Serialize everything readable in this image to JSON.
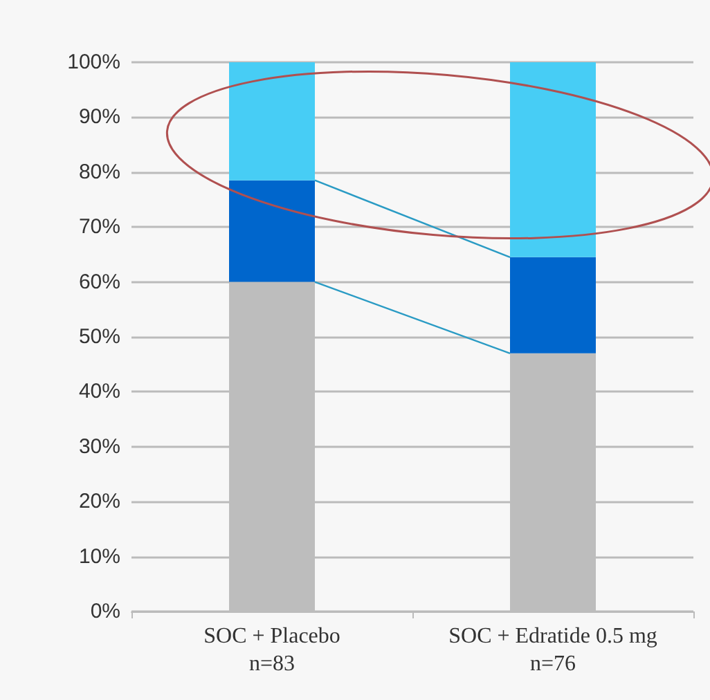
{
  "chart_data": {
    "type": "bar",
    "stacked": true,
    "categories": [
      "SOC + Placebo\nn=83",
      "SOC + Edratide 0.5 mg\nn=76"
    ],
    "series": [
      {
        "color": "#bdbdbd",
        "values": [
          60,
          47
        ]
      },
      {
        "color": "#0066cc",
        "values": [
          18.5,
          17.5
        ]
      },
      {
        "color": "#47cdf5",
        "values": [
          21.5,
          35.5
        ]
      }
    ],
    "ylim": [
      0,
      100
    ],
    "yticks": [
      {
        "value": 0,
        "label": "0%"
      },
      {
        "value": 10,
        "label": "10%"
      },
      {
        "value": 20,
        "label": "20%"
      },
      {
        "value": 30,
        "label": "30%"
      },
      {
        "value": 40,
        "label": "40%"
      },
      {
        "value": 50,
        "label": "50%"
      },
      {
        "value": 60,
        "label": "60%"
      },
      {
        "value": 70,
        "label": "70%"
      },
      {
        "value": 80,
        "label": "80%"
      },
      {
        "value": 90,
        "label": "90%"
      },
      {
        "value": 100,
        "label": "100%"
      }
    ],
    "grid": "y"
  }
}
